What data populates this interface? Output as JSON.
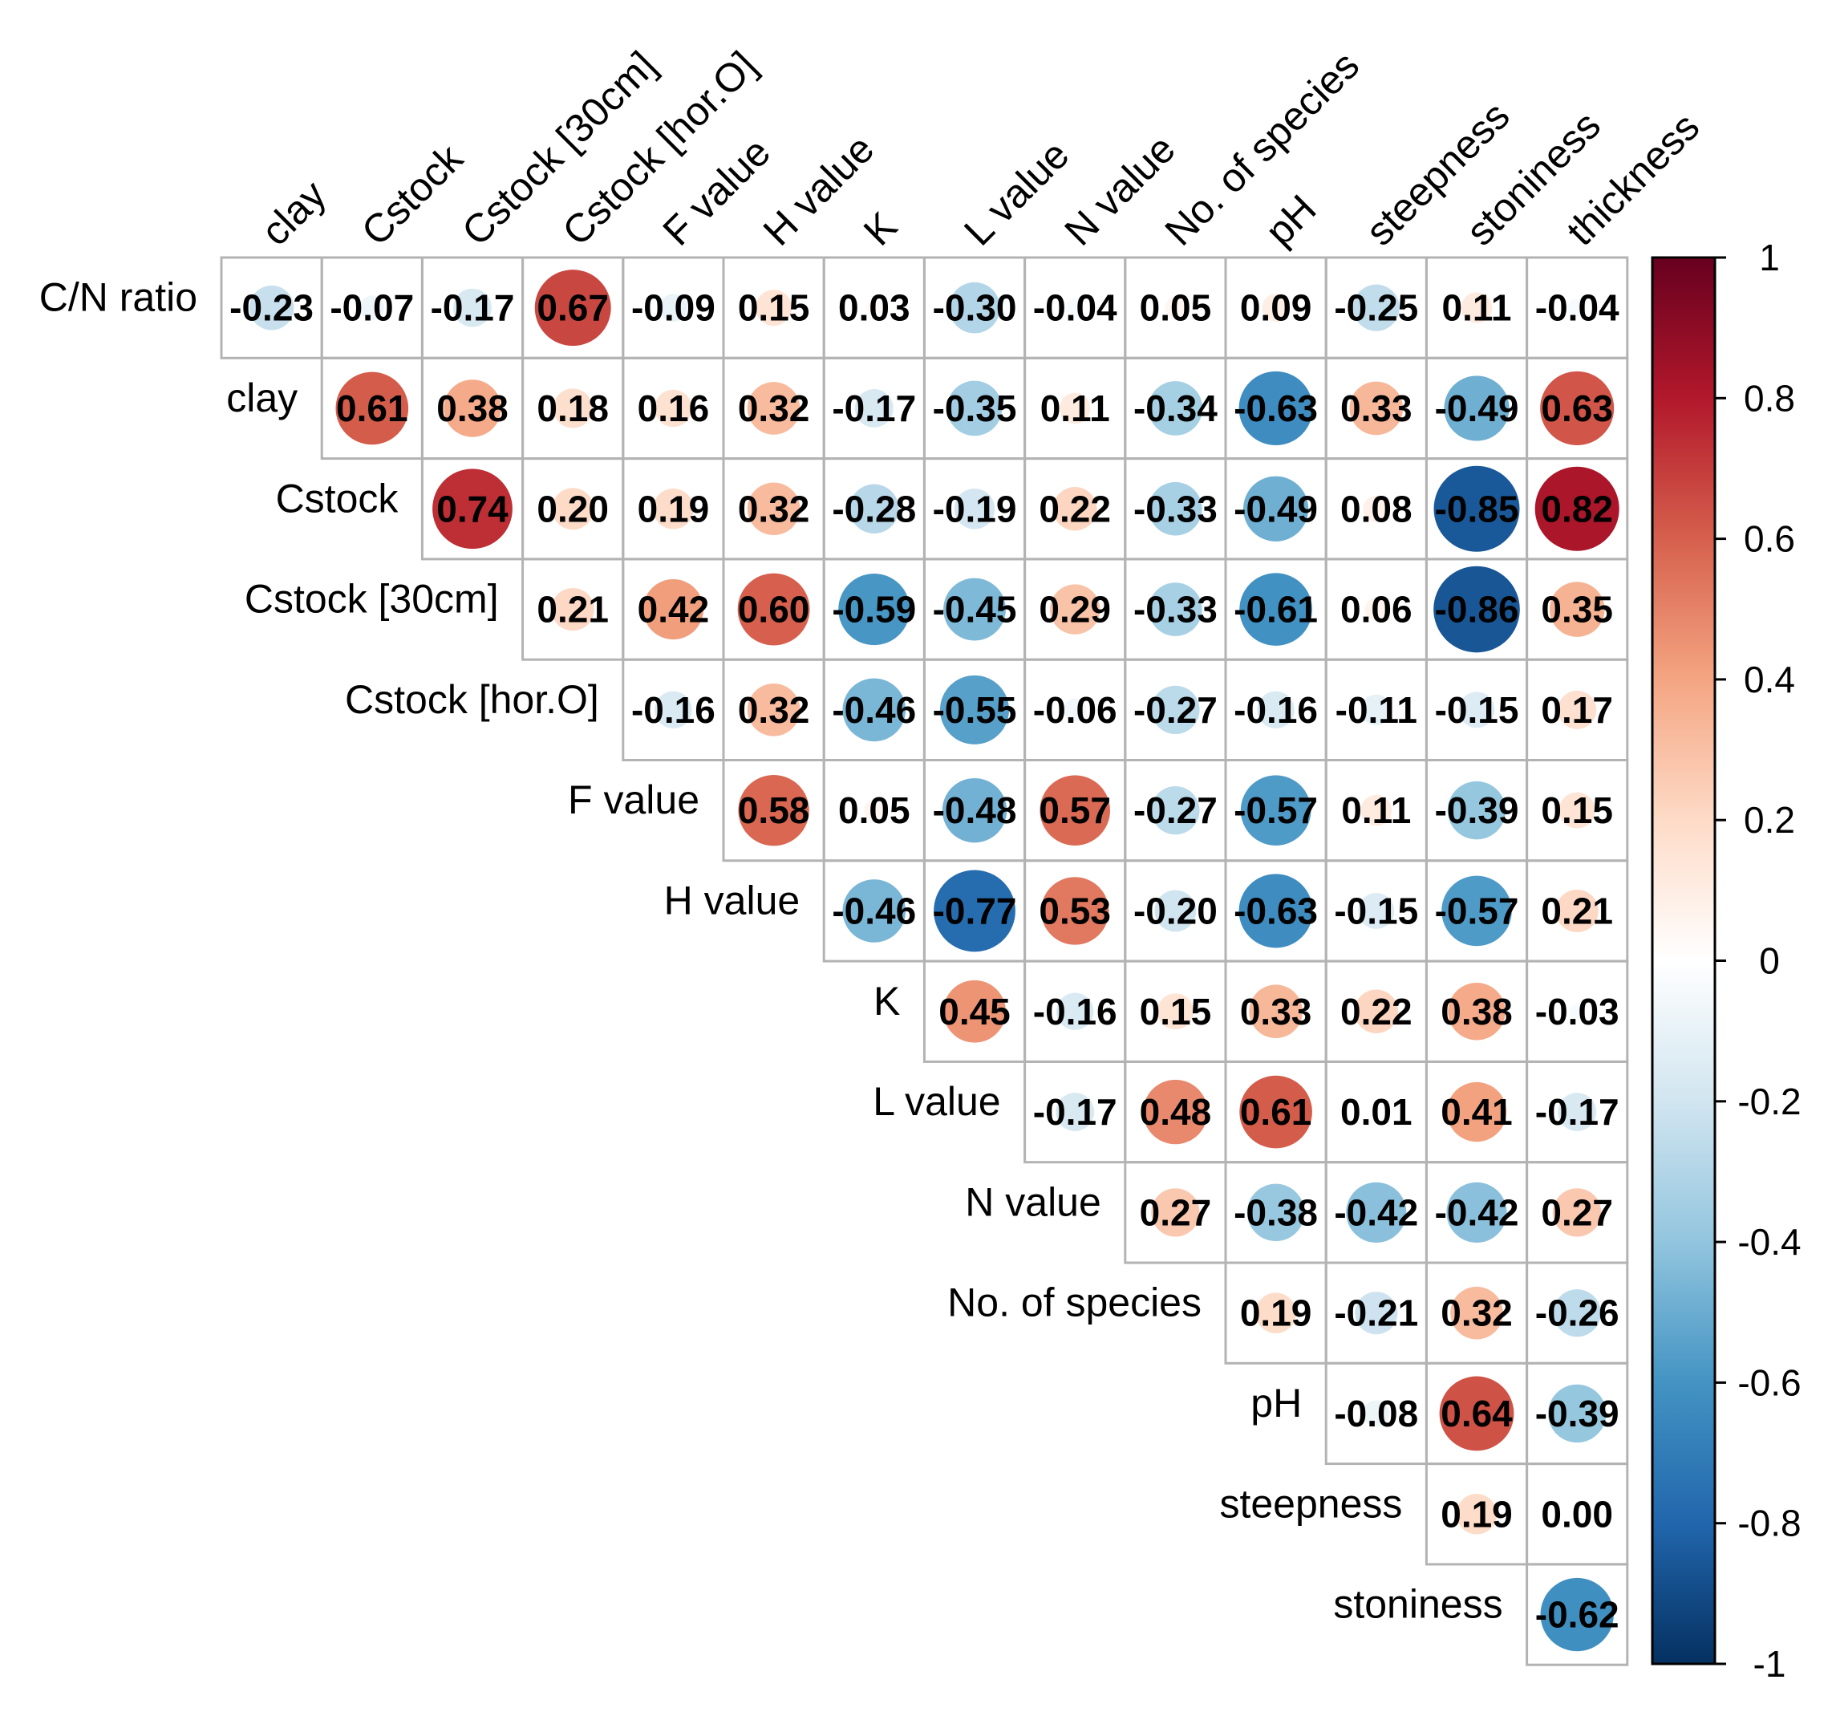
{
  "chart_data": {
    "type": "heatmap",
    "title": "",
    "variant": "correlation matrix (upper triangle, circle size and color by r)",
    "columns": [
      "clay",
      "Cstock",
      "Cstock [30cm]",
      "Cstock [hor.O]",
      "F value",
      "H value",
      "K",
      "L value",
      "N value",
      "No. of species",
      "pH",
      "steepness",
      "stoniness",
      "thickness"
    ],
    "rows": [
      "C/N ratio",
      "clay",
      "Cstock",
      "Cstock [30cm]",
      "Cstock [hor.O]",
      "F value",
      "H value",
      "K",
      "L value",
      "N value",
      "No. of species",
      "pH",
      "steepness",
      "stoniness"
    ],
    "values": [
      [
        -0.23,
        -0.07,
        -0.17,
        0.67,
        -0.09,
        0.15,
        0.03,
        -0.3,
        -0.04,
        0.05,
        0.09,
        -0.25,
        0.11,
        -0.04
      ],
      [
        0.61,
        0.38,
        0.18,
        0.16,
        0.32,
        -0.17,
        -0.35,
        0.11,
        -0.34,
        -0.63,
        0.33,
        -0.49,
        0.63
      ],
      [
        0.74,
        0.2,
        0.19,
        0.32,
        -0.28,
        -0.19,
        0.22,
        -0.33,
        -0.49,
        0.08,
        -0.85,
        0.82
      ],
      [
        0.21,
        0.42,
        0.6,
        -0.59,
        -0.45,
        0.29,
        -0.33,
        -0.61,
        0.06,
        -0.86,
        0.35
      ],
      [
        -0.16,
        0.32,
        -0.46,
        -0.55,
        -0.06,
        -0.27,
        -0.16,
        -0.11,
        -0.15,
        0.17
      ],
      [
        0.58,
        0.05,
        -0.48,
        0.57,
        -0.27,
        -0.57,
        0.11,
        -0.39,
        0.15
      ],
      [
        -0.46,
        -0.77,
        0.53,
        -0.2,
        -0.63,
        -0.15,
        -0.57,
        0.21
      ],
      [
        0.45,
        -0.16,
        0.15,
        0.33,
        0.22,
        0.38,
        -0.03
      ],
      [
        -0.17,
        0.48,
        0.61,
        0.01,
        0.41,
        -0.17
      ],
      [
        0.27,
        -0.38,
        -0.42,
        -0.42,
        0.27
      ],
      [
        0.19,
        -0.21,
        0.32,
        -0.26
      ],
      [
        -0.08,
        0.64,
        -0.39
      ],
      [
        0.19,
        0.0
      ],
      [
        -0.62
      ]
    ],
    "labels": [
      [
        "-0.23",
        "-0.07",
        "-0.17",
        "0.67",
        "-0.09",
        "0.15",
        "0.03",
        "-0.30",
        "-0.04",
        "0.05",
        "0.09",
        "-0.25",
        "0.11",
        "-0.04"
      ],
      [
        "0.61",
        "0.38",
        "0.18",
        "0.16",
        "0.32",
        "-0.17",
        "-0.35",
        "0.11",
        "-0.34",
        "-0.63",
        "0.33",
        "-0.49",
        "0.63"
      ],
      [
        "0.74",
        "0.20",
        "0.19",
        "0.32",
        "-0.28",
        "-0.19",
        "0.22",
        "-0.33",
        "-0.49",
        "0.08",
        "-0.85",
        "0.82"
      ],
      [
        "0.21",
        "0.42",
        "0.60",
        "-0.59",
        "-0.45",
        "0.29",
        "-0.33",
        "-0.61",
        "0.06",
        "-0.86",
        "0.35"
      ],
      [
        "-0.16",
        "0.32",
        "-0.46",
        "-0.55",
        "-0.06",
        "-0.27",
        "-0.16",
        "-0.11",
        "-0.15",
        "0.17"
      ],
      [
        "0.58",
        "0.05",
        "-0.48",
        "0.57",
        "-0.27",
        "-0.57",
        "0.11",
        "-0.39",
        "0.15"
      ],
      [
        "-0.46",
        "-0.77",
        "0.53",
        "-0.20",
        "-0.63",
        "-0.15",
        "-0.57",
        "0.21"
      ],
      [
        "0.45",
        "-0.16",
        "0.15",
        "0.33",
        "0.22",
        "0.38",
        "-0.03"
      ],
      [
        "-0.17",
        "0.48",
        "0.61",
        "0.01",
        "0.41",
        "-0.17"
      ],
      [
        "0.27",
        "-0.38",
        "-0.42",
        "-0.42",
        "0.27"
      ],
      [
        "0.19",
        "-0.21",
        "0.32",
        "-0.26"
      ],
      [
        "-0.08",
        "0.64",
        "-0.39"
      ],
      [
        "0.19",
        "0.00"
      ],
      [
        "-0.62"
      ]
    ],
    "legend": {
      "placement": "right",
      "range": [
        -1,
        1
      ],
      "ticks": [
        "1",
        "0.8",
        "0.6",
        "0.4",
        "0.2",
        "0",
        "-0.2",
        "-0.4",
        "-0.6",
        "-0.8",
        "-1"
      ],
      "tick_values": [
        1,
        0.8,
        0.6,
        0.4,
        0.2,
        0,
        -0.2,
        -0.4,
        -0.6,
        -0.8,
        -1
      ],
      "colors": [
        "#053061",
        "#2166ac",
        "#4393c3",
        "#92c5de",
        "#d1e5f0",
        "#ffffff",
        "#fddbc7",
        "#f4a582",
        "#d6604d",
        "#b2182b",
        "#67001f"
      ]
    },
    "xlabel": "",
    "ylabel": ""
  }
}
